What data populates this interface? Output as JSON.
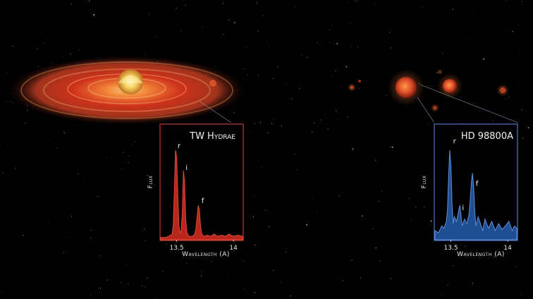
{
  "colors": {
    "background": "#000000",
    "tw_frame": "#c0392b",
    "tw_fill": "#b8261c",
    "tw_line": "#e04a3a",
    "hd_frame": "#4a78c8",
    "hd_fill": "#1f4f92",
    "hd_line": "#5d8fdc"
  },
  "chart_data": [
    {
      "type": "area",
      "title": "TW Hydrae",
      "xlabel": "Wavelength (A)",
      "ylabel": "Flux",
      "xlim": [
        13.36,
        14.08
      ],
      "ylim": [
        0,
        1.0
      ],
      "x_ticks": [
        13.5,
        14
      ],
      "x_tick_labels": [
        "13.5",
        "14"
      ],
      "grid": false,
      "annotations": [
        {
          "text": "r",
          "x": 13.49,
          "y": 0.78
        },
        {
          "text": "i",
          "x": 13.56,
          "y": 0.59
        },
        {
          "text": "f",
          "x": 13.7,
          "y": 0.3
        }
      ],
      "x": [
        13.36,
        13.4,
        13.43,
        13.46,
        13.47,
        13.48,
        13.49,
        13.5,
        13.51,
        13.52,
        13.53,
        13.54,
        13.55,
        13.56,
        13.57,
        13.58,
        13.59,
        13.61,
        13.64,
        13.66,
        13.67,
        13.68,
        13.69,
        13.7,
        13.71,
        13.72,
        13.74,
        13.77,
        13.8,
        13.83,
        13.86,
        13.9,
        13.93,
        13.96,
        14.0,
        14.04,
        14.08
      ],
      "series": [
        {
          "values": [
            0.02,
            0.02,
            0.03,
            0.05,
            0.12,
            0.42,
            0.78,
            0.72,
            0.38,
            0.12,
            0.06,
            0.08,
            0.24,
            0.6,
            0.5,
            0.18,
            0.06,
            0.03,
            0.03,
            0.05,
            0.1,
            0.2,
            0.3,
            0.26,
            0.12,
            0.05,
            0.03,
            0.04,
            0.03,
            0.05,
            0.03,
            0.04,
            0.03,
            0.05,
            0.03,
            0.04,
            0.03
          ]
        }
      ]
    },
    {
      "type": "area",
      "title": "HD 98800A",
      "xlabel": "Wavelength (A)",
      "ylabel": "Flux",
      "xlim": [
        13.36,
        14.08
      ],
      "ylim": [
        0,
        1.0
      ],
      "x_ticks": [
        13.5,
        14
      ],
      "x_tick_labels": [
        "13.5",
        "14"
      ],
      "grid": false,
      "annotations": [
        {
          "text": "r",
          "x": 13.5,
          "y": 0.82
        },
        {
          "text": "i",
          "x": 13.58,
          "y": 0.24
        },
        {
          "text": "f",
          "x": 13.7,
          "y": 0.45
        }
      ],
      "x": [
        13.36,
        13.39,
        13.42,
        13.44,
        13.46,
        13.47,
        13.48,
        13.49,
        13.5,
        13.51,
        13.52,
        13.53,
        13.55,
        13.57,
        13.58,
        13.59,
        13.6,
        13.62,
        13.64,
        13.66,
        13.67,
        13.68,
        13.69,
        13.7,
        13.71,
        13.72,
        13.74,
        13.76,
        13.78,
        13.8,
        13.83,
        13.86,
        13.89,
        13.92,
        13.95,
        13.98,
        14.01,
        14.04,
        14.06,
        14.08
      ],
      "series": [
        {
          "values": [
            0.08,
            0.06,
            0.12,
            0.1,
            0.16,
            0.26,
            0.55,
            0.78,
            0.64,
            0.3,
            0.14,
            0.2,
            0.16,
            0.26,
            0.3,
            0.2,
            0.12,
            0.18,
            0.14,
            0.22,
            0.34,
            0.5,
            0.58,
            0.46,
            0.24,
            0.12,
            0.2,
            0.14,
            0.08,
            0.18,
            0.1,
            0.16,
            0.08,
            0.14,
            0.09,
            0.12,
            0.16,
            0.08,
            0.12,
            0.1
          ]
        }
      ]
    }
  ]
}
